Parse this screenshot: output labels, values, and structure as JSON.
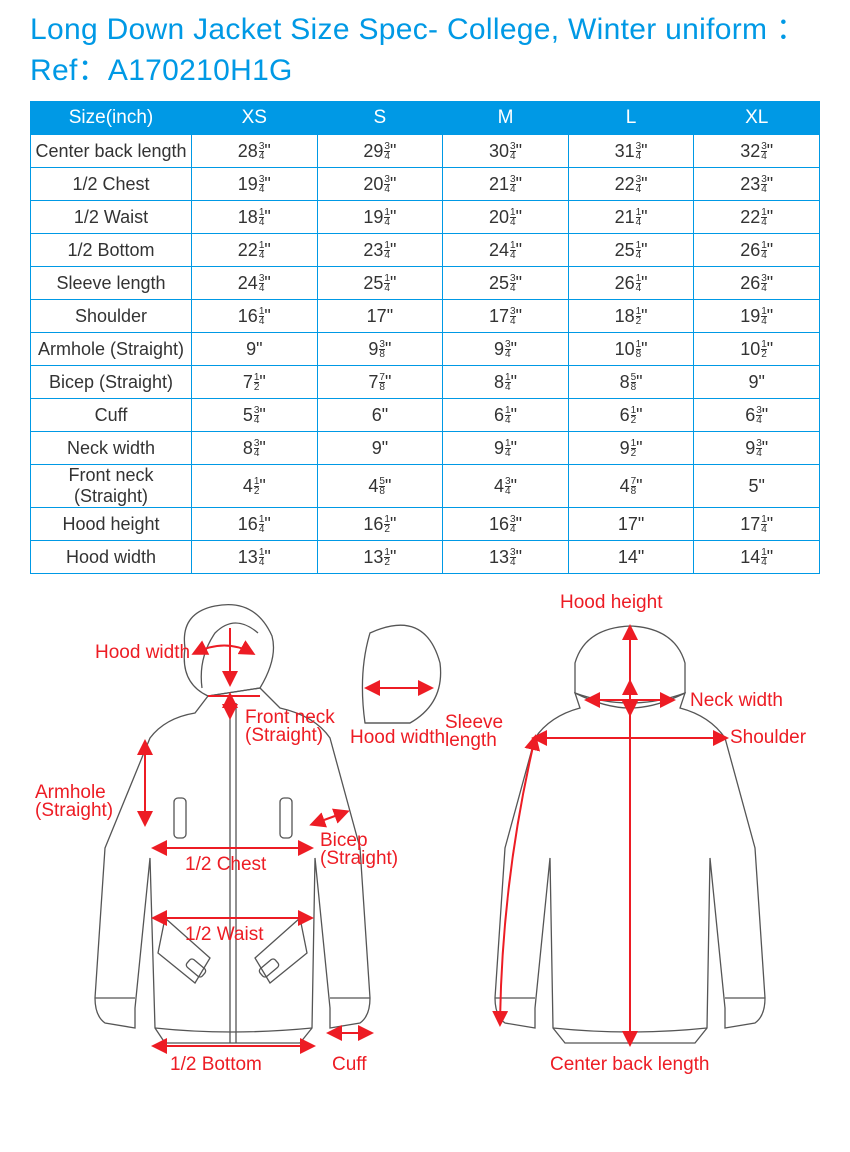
{
  "title_line1": "Long Down Jacket Size Spec- College, Winter uniform ：",
  "title_line2": "Ref：A170210H1G",
  "table": {
    "header_label": "Size(inch)",
    "sizes": [
      "XS",
      "S",
      "M",
      "L",
      "XL"
    ],
    "rows": [
      {
        "label": "Center back length",
        "values": [
          {
            "w": "28",
            "n": "3",
            "d": "4"
          },
          {
            "w": "29",
            "n": "3",
            "d": "4"
          },
          {
            "w": "30",
            "n": "3",
            "d": "4"
          },
          {
            "w": "31",
            "n": "3",
            "d": "4"
          },
          {
            "w": "32",
            "n": "3",
            "d": "4"
          }
        ]
      },
      {
        "label": "1/2 Chest",
        "values": [
          {
            "w": "19",
            "n": "3",
            "d": "4"
          },
          {
            "w": "20",
            "n": "3",
            "d": "4"
          },
          {
            "w": "21",
            "n": "3",
            "d": "4"
          },
          {
            "w": "22",
            "n": "3",
            "d": "4"
          },
          {
            "w": "23",
            "n": "3",
            "d": "4"
          }
        ]
      },
      {
        "label": "1/2 Waist",
        "values": [
          {
            "w": "18",
            "n": "1",
            "d": "4"
          },
          {
            "w": "19",
            "n": "1",
            "d": "4"
          },
          {
            "w": "20",
            "n": "1",
            "d": "4"
          },
          {
            "w": "21",
            "n": "1",
            "d": "4"
          },
          {
            "w": "22",
            "n": "1",
            "d": "4"
          }
        ]
      },
      {
        "label": "1/2 Bottom",
        "values": [
          {
            "w": "22",
            "n": "1",
            "d": "4"
          },
          {
            "w": "23",
            "n": "1",
            "d": "4"
          },
          {
            "w": "24",
            "n": "1",
            "d": "4"
          },
          {
            "w": "25",
            "n": "1",
            "d": "4"
          },
          {
            "w": "26",
            "n": "1",
            "d": "4"
          }
        ]
      },
      {
        "label": "Sleeve length",
        "values": [
          {
            "w": "24",
            "n": "3",
            "d": "4"
          },
          {
            "w": "25",
            "n": "1",
            "d": "4"
          },
          {
            "w": "25",
            "n": "3",
            "d": "4"
          },
          {
            "w": "26",
            "n": "1",
            "d": "4"
          },
          {
            "w": "26",
            "n": "3",
            "d": "4"
          }
        ]
      },
      {
        "label": "Shoulder",
        "values": [
          {
            "w": "16",
            "n": "1",
            "d": "4"
          },
          {
            "w": "17"
          },
          {
            "w": "17",
            "n": "3",
            "d": "4"
          },
          {
            "w": "18",
            "n": "1",
            "d": "2"
          },
          {
            "w": "19",
            "n": "1",
            "d": "4"
          }
        ]
      },
      {
        "label": "Armhole (Straight)",
        "values": [
          {
            "w": "9"
          },
          {
            "w": "9",
            "n": "3",
            "d": "8"
          },
          {
            "w": "9",
            "n": "3",
            "d": "4"
          },
          {
            "w": "10",
            "n": "1",
            "d": "8"
          },
          {
            "w": "10",
            "n": "1",
            "d": "2"
          }
        ]
      },
      {
        "label": "Bicep (Straight)",
        "values": [
          {
            "w": "7",
            "n": "1",
            "d": "2"
          },
          {
            "w": "7",
            "n": "7",
            "d": "8"
          },
          {
            "w": "8",
            "n": "1",
            "d": "4"
          },
          {
            "w": "8",
            "n": "5",
            "d": "8"
          },
          {
            "w": "9"
          }
        ]
      },
      {
        "label": "Cuff",
        "values": [
          {
            "w": "5",
            "n": "3",
            "d": "4"
          },
          {
            "w": "6"
          },
          {
            "w": "6",
            "n": "1",
            "d": "4"
          },
          {
            "w": "6",
            "n": "1",
            "d": "2"
          },
          {
            "w": "6",
            "n": "3",
            "d": "4"
          }
        ]
      },
      {
        "label": "Neck width",
        "values": [
          {
            "w": "8",
            "n": "3",
            "d": "4"
          },
          {
            "w": "9"
          },
          {
            "w": "9",
            "n": "1",
            "d": "4"
          },
          {
            "w": "9",
            "n": "1",
            "d": "2"
          },
          {
            "w": "9",
            "n": "3",
            "d": "4"
          }
        ]
      },
      {
        "label": "Front neck (Straight)",
        "values": [
          {
            "w": "4",
            "n": "1",
            "d": "2"
          },
          {
            "w": "4",
            "n": "5",
            "d": "8"
          },
          {
            "w": "4",
            "n": "3",
            "d": "4"
          },
          {
            "w": "4",
            "n": "7",
            "d": "8"
          },
          {
            "w": "5"
          }
        ]
      },
      {
        "label": "Hood height",
        "values": [
          {
            "w": "16",
            "n": "1",
            "d": "4"
          },
          {
            "w": "16",
            "n": "1",
            "d": "2"
          },
          {
            "w": "16",
            "n": "3",
            "d": "4"
          },
          {
            "w": "17"
          },
          {
            "w": "17",
            "n": "1",
            "d": "4"
          }
        ]
      },
      {
        "label": "Hood width",
        "values": [
          {
            "w": "13",
            "n": "1",
            "d": "4"
          },
          {
            "w": "13",
            "n": "1",
            "d": "2"
          },
          {
            "w": "13",
            "n": "3",
            "d": "4"
          },
          {
            "w": "14"
          },
          {
            "w": "14",
            "n": "1",
            "d": "4"
          }
        ]
      }
    ]
  },
  "diagram_labels": {
    "hood_height": "Hood height",
    "hood_width_top": "Hood width",
    "hood_width_mid": "Hood width",
    "front_neck": "Front neck\n(Straight)",
    "armhole": "Armhole\n(Straight)",
    "bicep": "Bicep\n(Straight)",
    "half_chest": "1/2 Chest",
    "half_waist": "1/2 Waist",
    "half_bottom": "1/2 Bottom",
    "cuff": "Cuff",
    "sleeve_length": "Sleeve\nlength",
    "neck_width": "Neck width",
    "shoulder": "Shoulder",
    "center_back": "Center back length"
  },
  "colors": {
    "title": "#0099e5",
    "border": "#0099e5",
    "header_bg": "#0099e5",
    "header_text": "#ffffff",
    "cell_text": "#333333",
    "label_red": "#ed1c24",
    "outline": "#555555",
    "background": "#ffffff"
  }
}
